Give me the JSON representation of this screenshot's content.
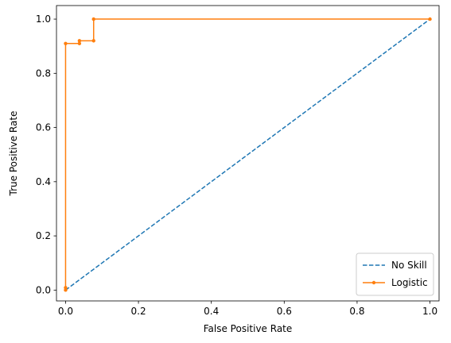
{
  "chart_data": {
    "type": "line",
    "title": "",
    "xlabel": "False Positive Rate",
    "ylabel": "True Positive Rate",
    "xlim": [
      -0.025,
      1.025
    ],
    "ylim": [
      -0.04,
      1.05
    ],
    "xticks": [
      0.0,
      0.2,
      0.4,
      0.6,
      0.8,
      1.0
    ],
    "yticks": [
      0.0,
      0.2,
      0.4,
      0.6,
      0.8,
      1.0
    ],
    "xtick_labels": [
      "0.0",
      "0.2",
      "0.4",
      "0.6",
      "0.8",
      "1.0"
    ],
    "ytick_labels": [
      "0.0",
      "0.2",
      "0.4",
      "0.6",
      "0.8",
      "1.0"
    ],
    "grid": false,
    "legend_position": "lower-right",
    "series": [
      {
        "name": "No Skill",
        "color": "#1f77b4",
        "style": "dashed",
        "markers": false,
        "x": [
          0,
          1
        ],
        "y": [
          0,
          1
        ]
      },
      {
        "name": "Logistic",
        "color": "#ff7f0e",
        "style": "solid",
        "markers": true,
        "x": [
          0,
          0,
          0,
          0.038,
          0.038,
          0.077,
          0.077,
          1
        ],
        "y": [
          0,
          0.009,
          0.91,
          0.91,
          0.92,
          0.92,
          1.0,
          1.0
        ]
      }
    ]
  }
}
